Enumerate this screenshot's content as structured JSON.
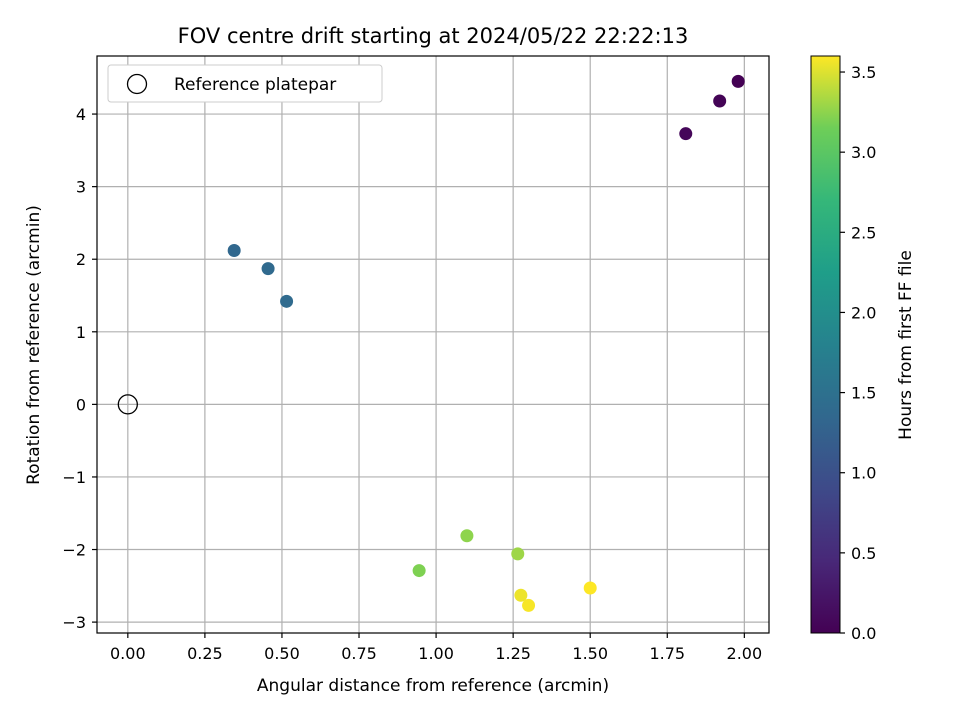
{
  "chart_data": {
    "type": "scatter",
    "title": "FOV centre drift starting at 2024/05/22 22:22:13",
    "xlabel": "Angular distance from reference (arcmin)",
    "ylabel": "Rotation from reference (arcmin)",
    "xlim": [
      -0.1,
      2.08
    ],
    "ylim": [
      -3.15,
      4.8
    ],
    "x_ticks": [
      0.0,
      0.25,
      0.5,
      0.75,
      1.0,
      1.25,
      1.5,
      1.75,
      2.0
    ],
    "x_tick_labels": [
      "0.00",
      "0.25",
      "0.50",
      "0.75",
      "1.00",
      "1.25",
      "1.50",
      "1.75",
      "2.00"
    ],
    "y_ticks": [
      -3,
      -2,
      -1,
      0,
      1,
      2,
      3,
      4
    ],
    "y_tick_labels": [
      "−3",
      "−2",
      "−1",
      "0",
      "1",
      "2",
      "3",
      "4"
    ],
    "grid": true,
    "legend": {
      "placement": "top-left",
      "entries": [
        {
          "label": "Reference platepar",
          "marker": "open-circle"
        }
      ]
    },
    "reference_point": {
      "x": 0.0,
      "y": 0.0
    },
    "colorbar": {
      "label": "Hours from first FF file",
      "colormap": "viridis",
      "range": [
        0.0,
        3.6
      ],
      "ticks": [
        0.0,
        0.5,
        1.0,
        1.5,
        2.0,
        2.5,
        3.0,
        3.5
      ],
      "tick_labels": [
        "0.0",
        "0.5",
        "1.0",
        "1.5",
        "2.0",
        "2.5",
        "3.0",
        "3.5"
      ]
    },
    "points": [
      {
        "x": 1.98,
        "y": 4.45,
        "hours": 0.0
      },
      {
        "x": 1.92,
        "y": 4.18,
        "hours": 0.03
      },
      {
        "x": 1.81,
        "y": 3.73,
        "hours": 0.06
      },
      {
        "x": 0.345,
        "y": 2.12,
        "hours": 1.35
      },
      {
        "x": 0.455,
        "y": 1.87,
        "hours": 1.38
      },
      {
        "x": 0.515,
        "y": 1.42,
        "hours": 1.41
      },
      {
        "x": 0.945,
        "y": -2.29,
        "hours": 3.2
      },
      {
        "x": 1.1,
        "y": -1.81,
        "hours": 3.25
      },
      {
        "x": 1.265,
        "y": -2.06,
        "hours": 3.3
      },
      {
        "x": 1.275,
        "y": -2.63,
        "hours": 3.55
      },
      {
        "x": 1.3,
        "y": -2.77,
        "hours": 3.58
      },
      {
        "x": 1.5,
        "y": -2.53,
        "hours": 3.6
      }
    ]
  }
}
